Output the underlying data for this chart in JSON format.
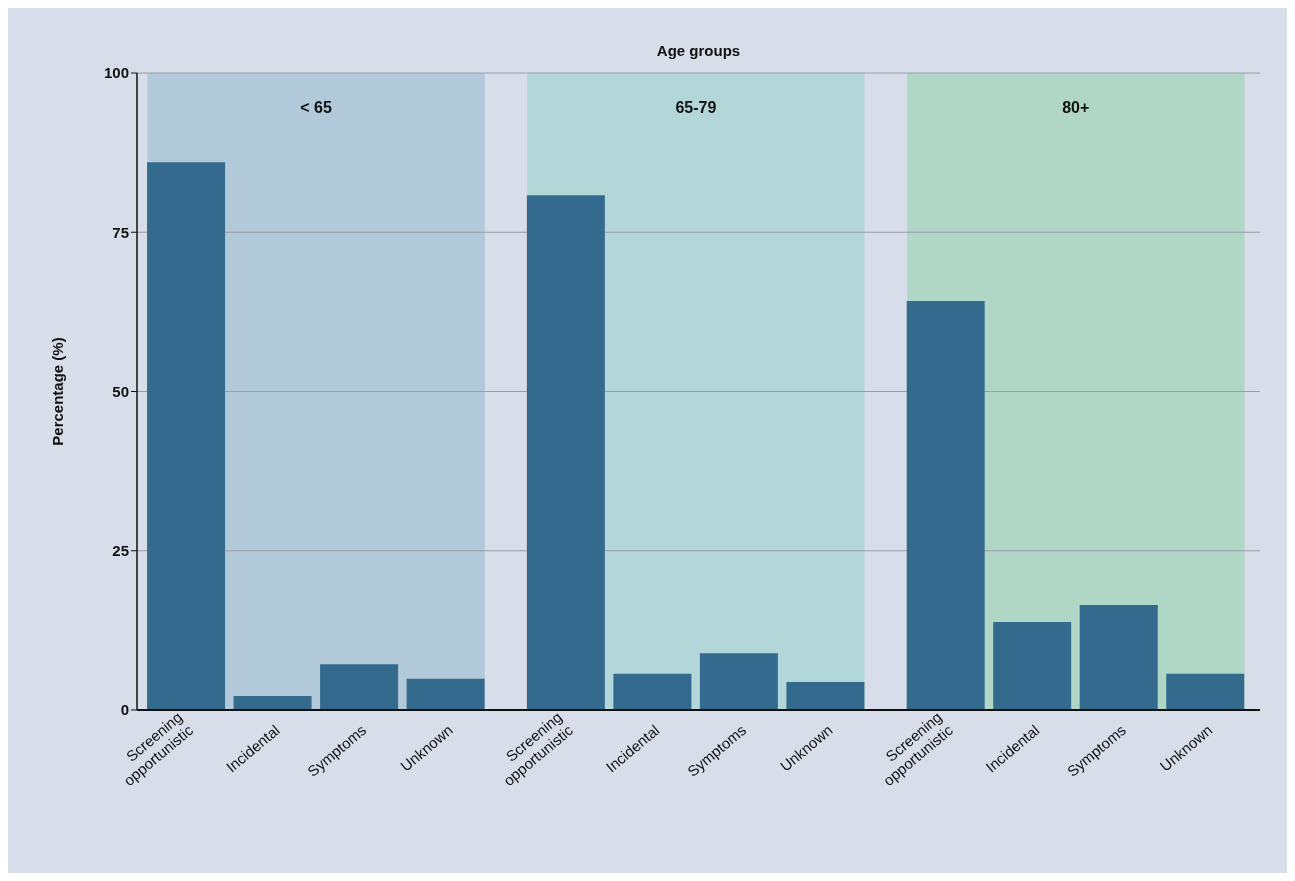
{
  "chart_data": {
    "type": "bar",
    "xlabel": "Age groups",
    "ylabel": "Percentage (%)",
    "categories": [
      "Screening opportunistic",
      "Incidental",
      "Symptoms",
      "Unknown",
      "Screening opportunistic",
      "Incidental",
      "Symptoms",
      "Unknown",
      "Screening opportunistic",
      "Incidental",
      "Symptoms",
      "Unknown"
    ],
    "values": [
      86.0,
      2.2,
      7.2,
      4.9,
      80.8,
      5.7,
      8.9,
      4.4,
      64.2,
      13.8,
      16.5,
      5.7
    ],
    "color": "#356a8f",
    "ylim": [
      0,
      100
    ],
    "yticks": [
      0,
      25,
      50,
      75,
      100
    ],
    "grid": "y",
    "annotations": [
      "< 65",
      "65-79",
      "80+"
    ]
  }
}
